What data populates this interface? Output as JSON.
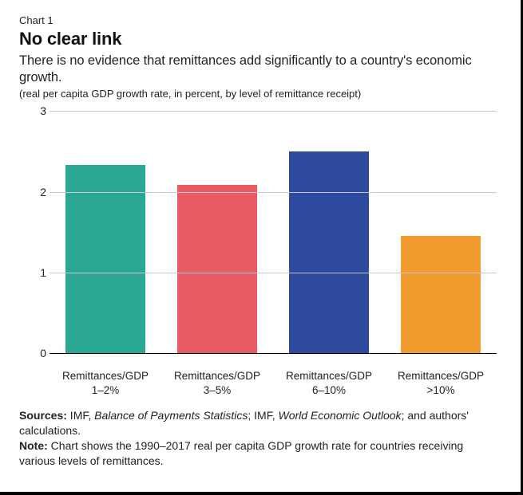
{
  "header": {
    "chart_label": "Chart 1",
    "title": "No clear link",
    "subtitle": "There is no evidence that remittances add significantly to a country's economic growth.",
    "units": "(real per capita GDP growth rate, in percent, by level of remittance receipt)"
  },
  "chart": {
    "type": "bar",
    "ylim": [
      0,
      3
    ],
    "ytick_step": 1,
    "yticks": [
      0,
      1,
      2,
      3
    ],
    "grid_color": "#c8c8c8",
    "baseline_color": "#000000",
    "background_color": "#ffffff",
    "tick_fontsize": 14,
    "categories": [
      {
        "label_top": "Remittances/GDP",
        "label_bottom": "1–2%"
      },
      {
        "label_top": "Remittances/GDP",
        "label_bottom": "3–5%"
      },
      {
        "label_top": "Remittances/GDP",
        "label_bottom": "6–10%"
      },
      {
        "label_top": "Remittances/GDP",
        "label_bottom": ">10%"
      }
    ],
    "values": [
      2.33,
      2.08,
      2.5,
      1.45
    ],
    "bar_colors": [
      "#2aa793",
      "#e85b63",
      "#2e4a9e",
      "#f29b2e"
    ],
    "bar_width": 0.72,
    "xlabel_fontsize": 13.5
  },
  "footer": {
    "sources_label": "Sources:",
    "sources_text_1": " IMF, ",
    "sources_ital_1": "Balance of Payments Statistics",
    "sources_text_2": "; IMF, ",
    "sources_ital_2": "World Economic Outlook",
    "sources_text_3": "; and authors' calculations.",
    "note_label": "Note:",
    "note_text": " Chart shows the 1990–2017 real per capita GDP growth rate for countries receiving various levels of remittances."
  }
}
